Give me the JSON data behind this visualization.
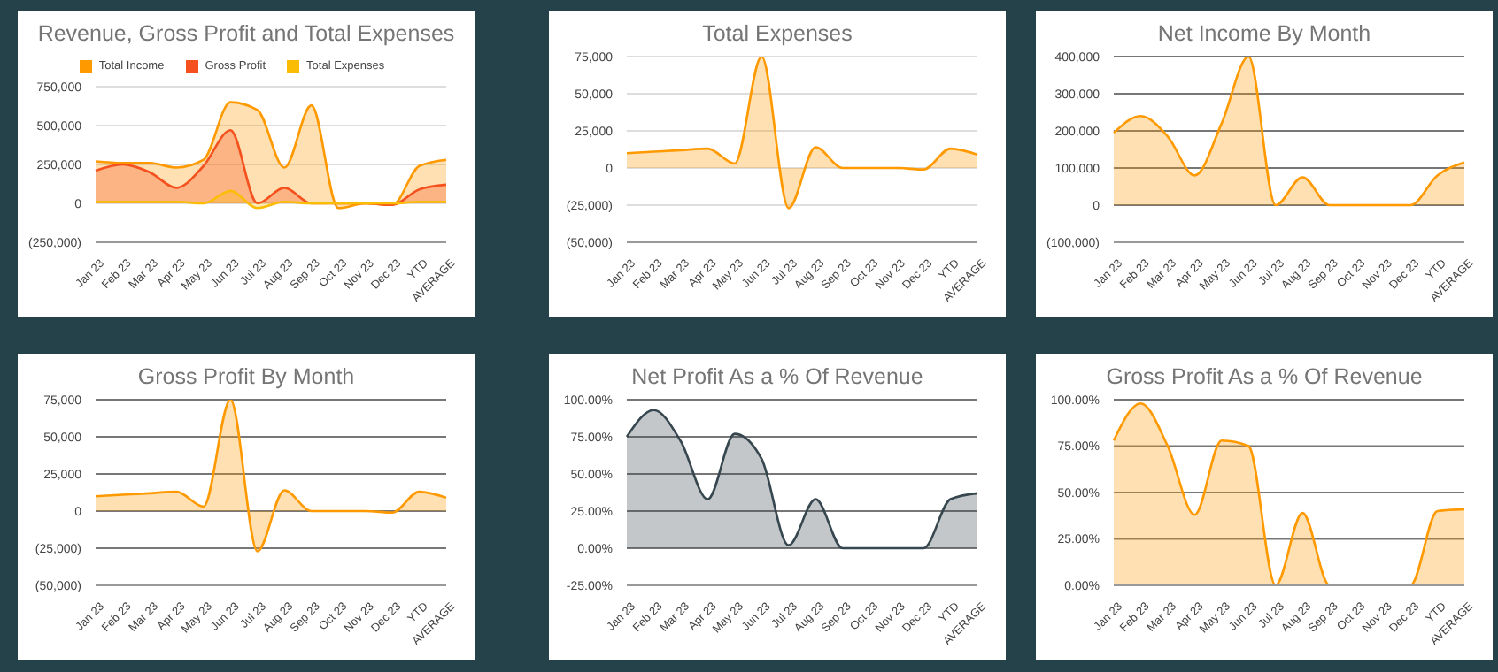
{
  "chart_data": [
    {
      "type": "area",
      "title": "Revenue, Gross Profit and Total Expenses",
      "categories": [
        "Jan 23",
        "Feb 23",
        "Mar 23",
        "Apr 23",
        "May 23",
        "Jun 23",
        "Jul 23",
        "Aug 23",
        "Sep 23",
        "Oct 23",
        "Nov 23",
        "Dec 23",
        "YTD",
        "AVERAGE"
      ],
      "series": [
        {
          "name": "Total Income",
          "color": "#ff9900",
          "values": [
            270000,
            260000,
            260000,
            230000,
            280000,
            650000,
            600000,
            230000,
            630000,
            -30000,
            0,
            -10000,
            240000,
            280000
          ]
        },
        {
          "name": "Gross Profit",
          "color": "#f4511e",
          "values": [
            210000,
            250000,
            200000,
            100000,
            240000,
            470000,
            0,
            100000,
            0,
            0,
            0,
            -10000,
            90000,
            120000
          ]
        },
        {
          "name": "Total Expenses",
          "color": "#fbbc04",
          "values": [
            10000,
            10000,
            10000,
            10000,
            0,
            80000,
            -30000,
            10000,
            0,
            0,
            0,
            0,
            10000,
            10000
          ]
        }
      ],
      "ylim": [
        -250000,
        750000
      ],
      "yticks": [
        {
          "value": -250000,
          "label": "(250,000)"
        },
        {
          "value": 0,
          "label": "0"
        },
        {
          "value": 250000,
          "label": "250,000"
        },
        {
          "value": 500000,
          "label": "500,000"
        },
        {
          "value": 750000,
          "label": "750,000"
        }
      ],
      "grid": "y",
      "legend": "top"
    },
    {
      "type": "area",
      "title": "Total Expenses",
      "categories": [
        "Jan 23",
        "Feb 23",
        "Mar 23",
        "Apr 23",
        "May 23",
        "Jun 23",
        "Jul 23",
        "Aug 23",
        "Sep 23",
        "Oct 23",
        "Nov 23",
        "Dec 23",
        "YTD",
        "AVERAGE"
      ],
      "series": [
        {
          "color": "#ff9900",
          "values": [
            10000,
            11000,
            12000,
            13000,
            3000,
            75000,
            -27000,
            14000,
            0,
            0,
            0,
            -1000,
            13000,
            9000
          ]
        }
      ],
      "ylim": [
        -50000,
        75000
      ],
      "yticks": [
        {
          "value": -50000,
          "label": "(50,000)"
        },
        {
          "value": -25000,
          "label": "(25,000)"
        },
        {
          "value": 0,
          "label": "0"
        },
        {
          "value": 25000,
          "label": "25,000"
        },
        {
          "value": 50000,
          "label": "50,000"
        },
        {
          "value": 75000,
          "label": "75,000"
        }
      ],
      "grid": "y"
    },
    {
      "type": "area",
      "title": "Net Income By Month",
      "categories": [
        "Jan 23",
        "Feb 23",
        "Mar 23",
        "Apr 23",
        "May 23",
        "Jun 23",
        "Jul 23",
        "Aug 23",
        "Sep 23",
        "Oct 23",
        "Nov 23",
        "Dec 23",
        "YTD",
        "AVERAGE"
      ],
      "series": [
        {
          "color": "#ff9900",
          "values": [
            195000,
            240000,
            185000,
            80000,
            220000,
            400000,
            0,
            75000,
            0,
            0,
            0,
            0,
            80000,
            115000
          ]
        }
      ],
      "ylim": [
        -100000,
        400000
      ],
      "yticks": [
        {
          "value": -100000,
          "label": "(100,000)"
        },
        {
          "value": 0,
          "label": "0"
        },
        {
          "value": 100000,
          "label": "100,000"
        },
        {
          "value": 200000,
          "label": "200,000"
        },
        {
          "value": 300000,
          "label": "300,000"
        },
        {
          "value": 400000,
          "label": "400,000"
        }
      ],
      "grid": "y"
    },
    {
      "type": "area",
      "title": "Gross Profit By Month",
      "categories": [
        "Jan 23",
        "Feb 23",
        "Mar 23",
        "Apr 23",
        "May 23",
        "Jun 23",
        "Jul 23",
        "Aug 23",
        "Sep 23",
        "Oct 23",
        "Nov 23",
        "Dec 23",
        "YTD",
        "AVERAGE"
      ],
      "series": [
        {
          "color": "#ff9900",
          "values": [
            10000,
            11000,
            12000,
            13000,
            3000,
            75000,
            -27000,
            14000,
            0,
            0,
            0,
            -1000,
            13000,
            9000
          ]
        }
      ],
      "ylim": [
        -50000,
        75000
      ],
      "yticks": [
        {
          "value": -50000,
          "label": "(50,000)"
        },
        {
          "value": -25000,
          "label": "(25,000)"
        },
        {
          "value": 0,
          "label": "0"
        },
        {
          "value": 25000,
          "label": "25,000"
        },
        {
          "value": 50000,
          "label": "50,000"
        },
        {
          "value": 75000,
          "label": "75,000"
        }
      ],
      "grid": "y"
    },
    {
      "type": "area",
      "title": "Net Profit As a % Of Revenue",
      "categories": [
        "Jan 23",
        "Feb 23",
        "Mar 23",
        "Apr 23",
        "May 23",
        "Jun 23",
        "Jul 23",
        "Aug 23",
        "Sep 23",
        "Oct 23",
        "Nov 23",
        "Dec 23",
        "YTD",
        "AVERAGE"
      ],
      "series": [
        {
          "color": "#37474f",
          "values": [
            75,
            93,
            72,
            33,
            77,
            60,
            2,
            33,
            0,
            0,
            0,
            0,
            33,
            37
          ]
        }
      ],
      "ylim": [
        -25,
        100
      ],
      "yticks": [
        {
          "value": -25,
          "label": "-25.00%"
        },
        {
          "value": 0,
          "label": "0.00%"
        },
        {
          "value": 25,
          "label": "25.00%"
        },
        {
          "value": 50,
          "label": "50.00%"
        },
        {
          "value": 75,
          "label": "75.00%"
        },
        {
          "value": 100,
          "label": "100.00%"
        }
      ],
      "grid": "y"
    },
    {
      "type": "area",
      "title": "Gross Profit As a % Of Revenue",
      "categories": [
        "Jan 23",
        "Feb 23",
        "Mar 23",
        "Apr 23",
        "May 23",
        "Jun 23",
        "Jul 23",
        "Aug 23",
        "Sep 23",
        "Oct 23",
        "Nov 23",
        "Dec 23",
        "YTD",
        "AVERAGE"
      ],
      "series": [
        {
          "color": "#ff9900",
          "values": [
            78,
            98,
            75,
            38,
            78,
            75,
            0,
            39,
            0,
            0,
            0,
            0,
            40,
            41
          ]
        }
      ],
      "ylim": [
        0,
        100
      ],
      "yticks": [
        {
          "value": 0,
          "label": "0.00%"
        },
        {
          "value": 25,
          "label": "25.00%"
        },
        {
          "value": 50,
          "label": "50.00%"
        },
        {
          "value": 75,
          "label": "75.00%"
        },
        {
          "value": 100,
          "label": "100.00%"
        }
      ],
      "grid": "y"
    }
  ]
}
